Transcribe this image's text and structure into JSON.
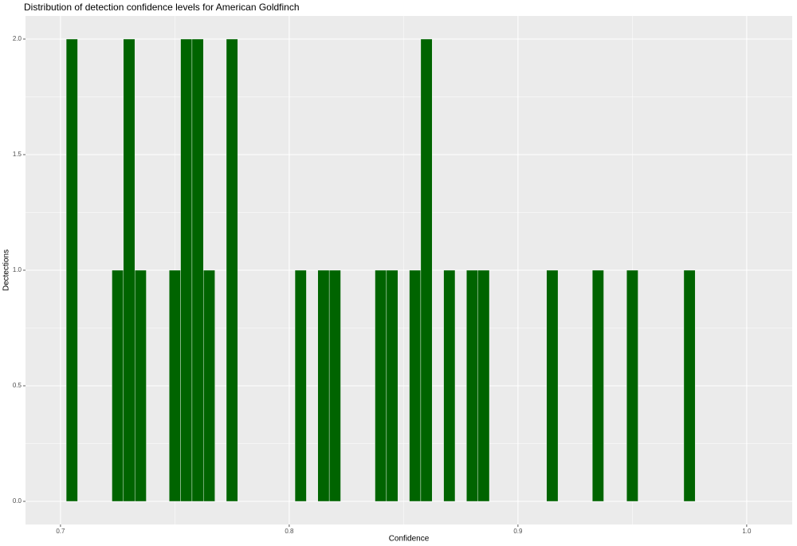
{
  "chart_data": {
    "type": "histogram",
    "title": "Distribution of detection confidence levels for American Goldfinch",
    "x_label": "Confidence",
    "y_label": "Dectections",
    "bins": [
      0.7025,
      0.7075,
      0.7125,
      0.7175,
      0.7225,
      0.7275,
      0.7325,
      0.7375,
      0.7425,
      0.7475,
      0.7525,
      0.7575,
      0.7625,
      0.7675,
      0.7725,
      0.7775,
      0.7825,
      0.7875,
      0.7925,
      0.7975,
      0.8025,
      0.8075,
      0.8125,
      0.8175,
      0.8225,
      0.8275,
      0.8325,
      0.8375,
      0.8425,
      0.8475,
      0.8525,
      0.8575,
      0.8625,
      0.8675,
      0.8725,
      0.8775,
      0.8825,
      0.8875,
      0.8925,
      0.8975,
      0.9025,
      0.9075,
      0.9125,
      0.9175,
      0.9225,
      0.9275,
      0.9325,
      0.9375,
      0.9425,
      0.9475,
      0.9525,
      0.9575,
      0.9625,
      0.9675,
      0.9725,
      0.9775
    ],
    "values": [
      2,
      0,
      0,
      0,
      1,
      2,
      1,
      0,
      0,
      1,
      2,
      2,
      1,
      0,
      2,
      0,
      0,
      0,
      0,
      0,
      1,
      0,
      1,
      1,
      0,
      0,
      0,
      1,
      1,
      0,
      1,
      2,
      0,
      1,
      0,
      1,
      1,
      0,
      0,
      0,
      0,
      0,
      1,
      0,
      0,
      0,
      1,
      0,
      0,
      1,
      0,
      0,
      0,
      0,
      1
    ],
    "color": "#006400",
    "outline": "#ffffff",
    "xlim": [
      0.6847,
      1.0199
    ],
    "xticks": [
      0.7,
      0.8,
      0.9,
      {
        "value": 1.0,
        "label": "1.0"
      }
    ],
    "ylim": [
      -0.1,
      2.1
    ],
    "yticks": [
      {
        "value": 0,
        "label": "0.0"
      },
      0.5,
      {
        "value": 1,
        "label": "1.0"
      },
      1.5,
      {
        "value": 2,
        "label": "2.0"
      }
    ],
    "grid": true
  }
}
